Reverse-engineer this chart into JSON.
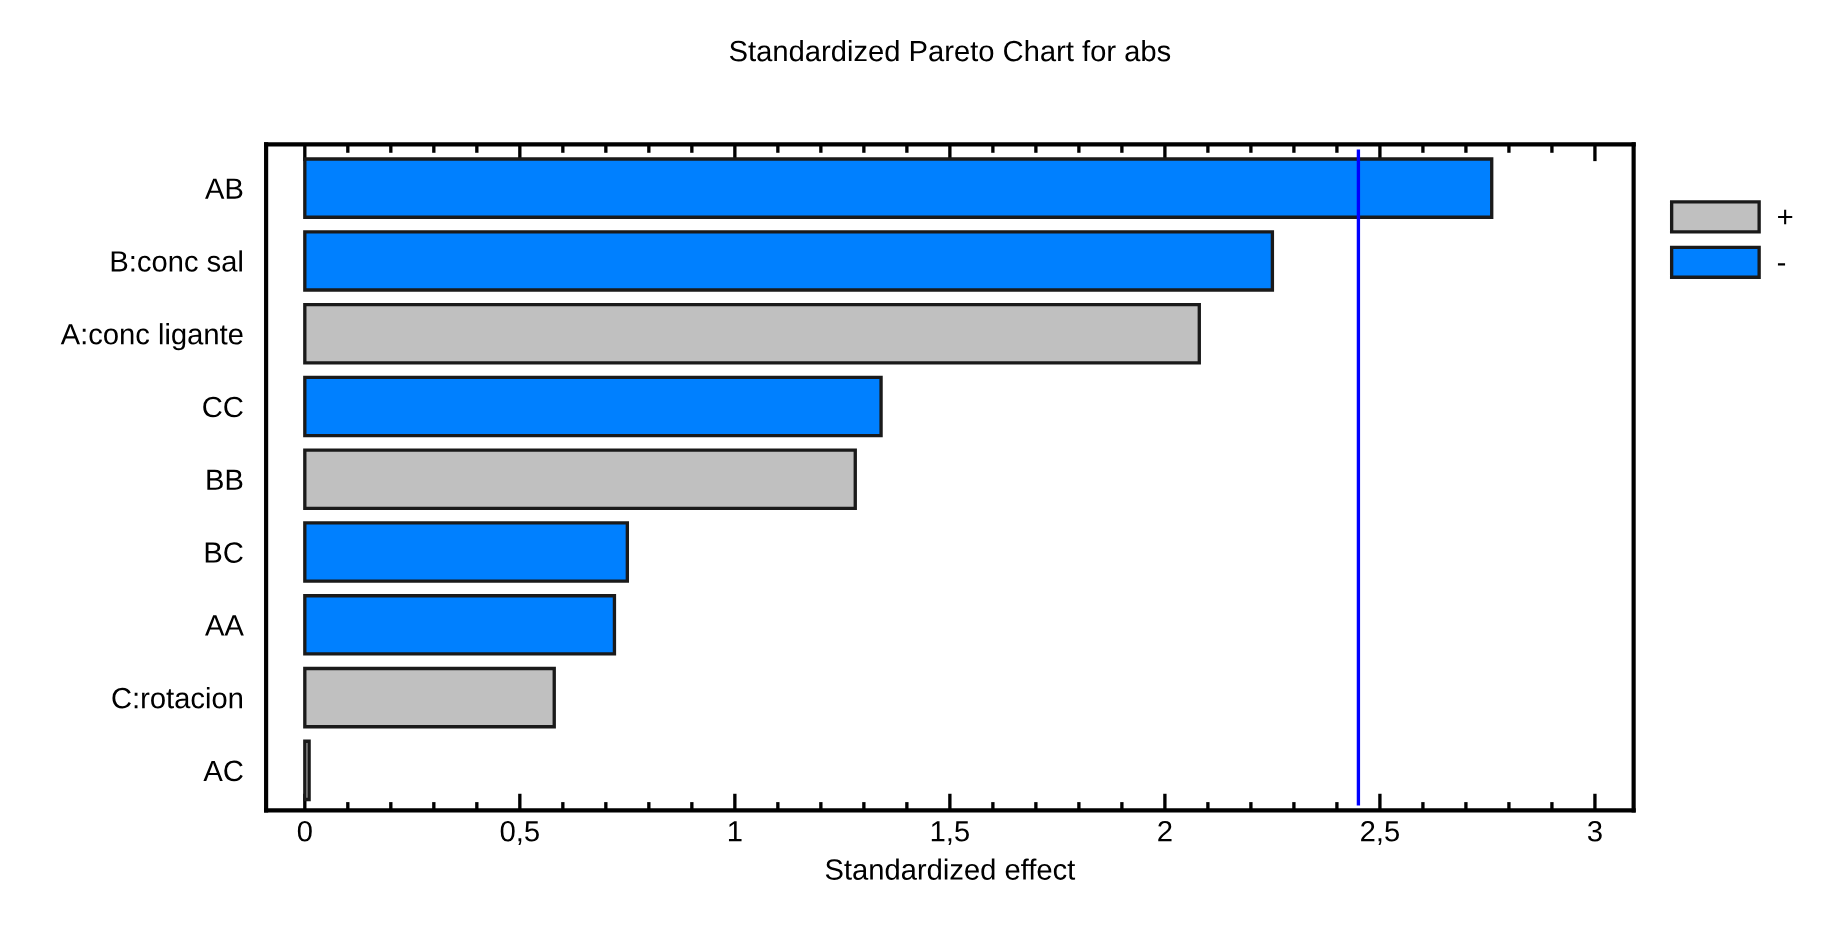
{
  "chart_data": {
    "type": "bar",
    "orientation": "horizontal",
    "title": "Standardized Pareto Chart for abs",
    "xlabel": "Standardized effect",
    "categories": [
      "AB",
      "B:conc sal",
      "A:conc ligante",
      "CC",
      "BB",
      "BC",
      "AA",
      "C:rotacion",
      "AC"
    ],
    "series": [
      {
        "name": "+",
        "color": "#c0c0c0",
        "values": [
          null,
          null,
          2.08,
          null,
          1.28,
          null,
          null,
          0.58,
          0.01
        ]
      },
      {
        "name": "-",
        "color": "#0080ff",
        "values": [
          2.76,
          2.25,
          null,
          1.34,
          null,
          0.75,
          0.72,
          null,
          null
        ]
      }
    ],
    "xlim": [
      -0.09,
      3.09
    ],
    "xticks": [
      {
        "value": 0,
        "label": "0"
      },
      {
        "value": 0.1,
        "label": null
      },
      {
        "value": 0.2,
        "label": null
      },
      {
        "value": 0.3,
        "label": null
      },
      {
        "value": 0.4,
        "label": null
      },
      {
        "value": 0.5,
        "label": "0,5"
      },
      {
        "value": 0.6,
        "label": null
      },
      {
        "value": 0.7,
        "label": null
      },
      {
        "value": 0.8,
        "label": null
      },
      {
        "value": 0.9,
        "label": null
      },
      {
        "value": 1,
        "label": "1"
      },
      {
        "value": 1.1,
        "label": null
      },
      {
        "value": 1.2,
        "label": null
      },
      {
        "value": 1.3,
        "label": null
      },
      {
        "value": 1.4,
        "label": null
      },
      {
        "value": 1.5,
        "label": "1,5"
      },
      {
        "value": 1.6,
        "label": null
      },
      {
        "value": 1.7,
        "label": null
      },
      {
        "value": 1.8,
        "label": null
      },
      {
        "value": 1.9,
        "label": null
      },
      {
        "value": 2,
        "label": "2"
      },
      {
        "value": 2.1,
        "label": null
      },
      {
        "value": 2.2,
        "label": null
      },
      {
        "value": 2.3,
        "label": null
      },
      {
        "value": 2.4,
        "label": null
      },
      {
        "value": 2.5,
        "label": "2,5"
      },
      {
        "value": 2.6,
        "label": null
      },
      {
        "value": 2.7,
        "label": null
      },
      {
        "value": 2.8,
        "label": null
      },
      {
        "value": 2.9,
        "label": null
      },
      {
        "value": 3,
        "label": "3"
      }
    ],
    "ref_lines": [
      {
        "axis": "x",
        "value": 2.45,
        "color": "#0000ff"
      }
    ],
    "legend": "top right",
    "grid": false
  }
}
